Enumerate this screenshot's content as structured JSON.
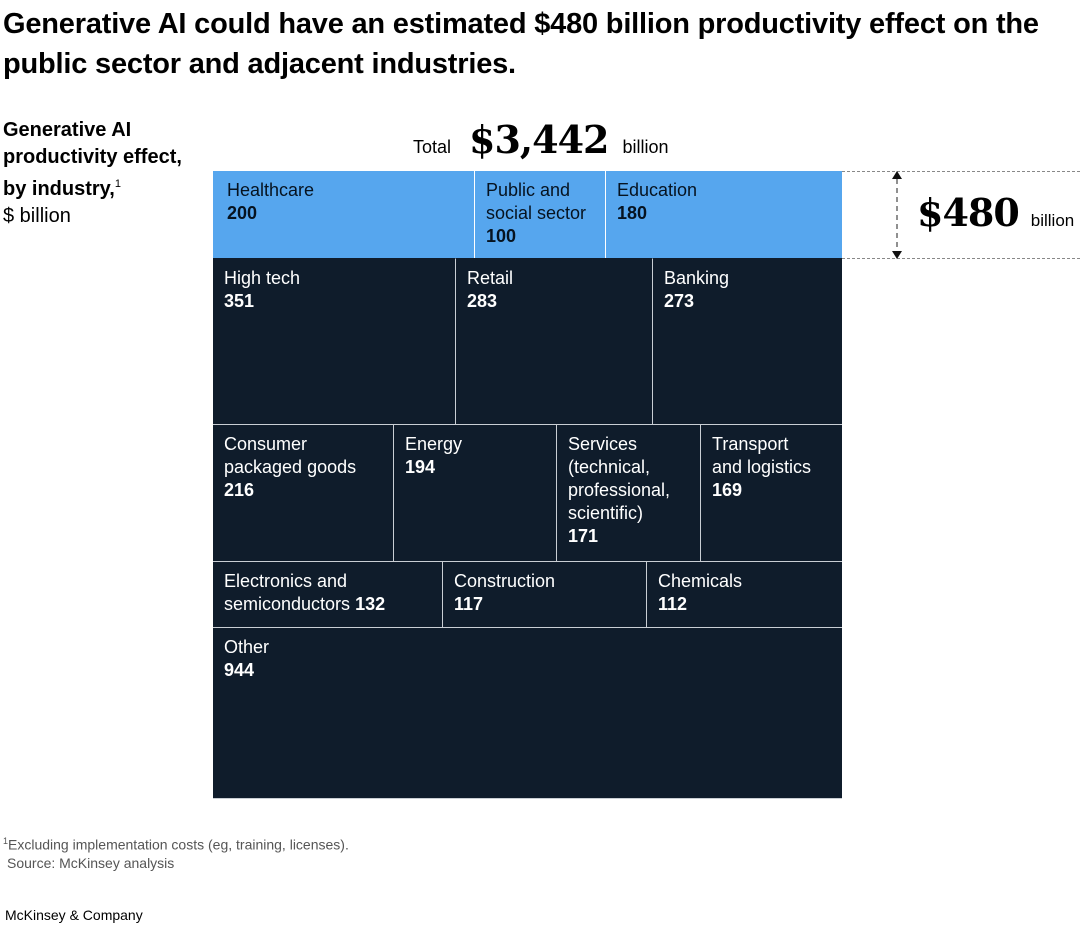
{
  "title": "Generative AI could have an estimated $480 billion productivity effect on the public sector and adjacent industries.",
  "side_label": {
    "bold": "Generative AI productivity effect, by industry,",
    "footnote_marker": "1",
    "unit": "$ billion"
  },
  "total": {
    "label": "Total",
    "value": "$3,442",
    "unit": "billion"
  },
  "callout": {
    "value": "$480",
    "unit": "billion"
  },
  "colors": {
    "highlight": "#56a6ee",
    "base": "#0f1c2b"
  },
  "chart_data": {
    "type": "treemap",
    "title": "Generative AI productivity effect, by industry ($ billion)",
    "total": 3442,
    "highlight_group": {
      "label": "Public sector and adjacent industries",
      "total": 480,
      "members": [
        "Healthcare",
        "Public and social sector",
        "Education"
      ]
    },
    "rows": [
      [
        {
          "label": "Healthcare",
          "value": 200,
          "highlight": true
        },
        {
          "label": "Public and social sector",
          "value": 100,
          "highlight": true
        },
        {
          "label": "Education",
          "value": 180,
          "highlight": true
        }
      ],
      [
        {
          "label": "High tech",
          "value": 351
        },
        {
          "label": "Retail",
          "value": 283
        },
        {
          "label": "Banking",
          "value": 273
        }
      ],
      [
        {
          "label": "Consumer packaged goods",
          "value": 216
        },
        {
          "label": "Energy",
          "value": 194
        },
        {
          "label": "Services (technical, professional, scientific)",
          "value": 171
        },
        {
          "label": "Transport and logistics",
          "value": 169
        }
      ],
      [
        {
          "label": "Electronics and semiconductors",
          "value": 132
        },
        {
          "label": "Construction",
          "value": 117
        },
        {
          "label": "Chemicals",
          "value": 112
        }
      ],
      [
        {
          "label": "Other",
          "value": 944
        }
      ]
    ]
  },
  "display_labels": [
    [
      "Healthcare",
      "Public and social sector",
      "Education"
    ],
    [
      "High tech",
      "Retail",
      "Banking"
    ],
    [
      "Consumer packaged goods",
      "Energy",
      "Services (technical, professional, scientific)",
      "Transport and logistics"
    ],
    [
      "Electronics and semiconductors",
      "Construction",
      "Chemicals"
    ],
    [
      "Other"
    ]
  ],
  "footnote": "Excluding implementation costs (eg, training, licenses).",
  "footnote_marker": "1",
  "source": "Source: McKinsey analysis",
  "brand": "McKinsey & Company"
}
